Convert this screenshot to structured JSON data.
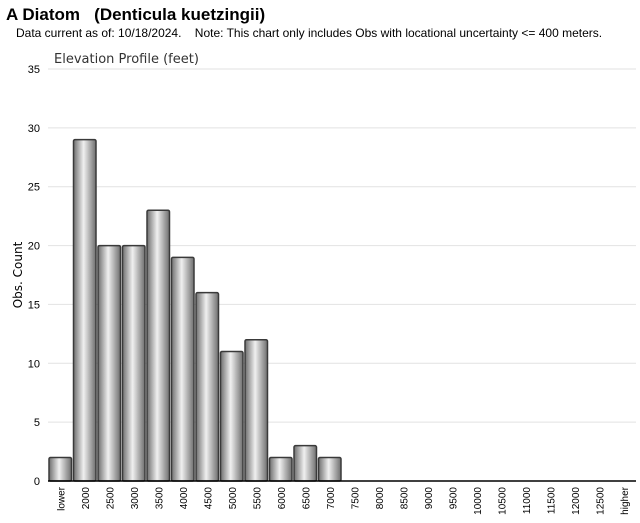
{
  "header": {
    "title": "A Diatom   (Denticula kuetzingii)",
    "note": "Data current as of: 10/18/2024.    Note: This chart only includes Obs with locational uncertainty <= 400 meters."
  },
  "chart_data": {
    "type": "bar",
    "title": "Elevation Profile (feet)",
    "xlabel": "",
    "ylabel": "Obs. Count",
    "ylim": [
      0,
      35
    ],
    "yticks": [
      0,
      5,
      10,
      15,
      20,
      25,
      30,
      35
    ],
    "grid": true,
    "categories": [
      "lower",
      "2000",
      "2500",
      "3000",
      "3500",
      "4000",
      "4500",
      "5000",
      "5500",
      "6000",
      "6500",
      "7000",
      "7500",
      "8000",
      "8500",
      "9000",
      "9500",
      "10000",
      "10500",
      "11000",
      "11500",
      "12000",
      "12500",
      "higher"
    ],
    "values": [
      2,
      29,
      20,
      20,
      23,
      19,
      16,
      11,
      12,
      2,
      3,
      2,
      0,
      0,
      0,
      0,
      0,
      0,
      0,
      0,
      0,
      0,
      0,
      0
    ],
    "colors": {
      "bar_dark": "#6e6e6e",
      "bar_light": "#f0f0f0",
      "bar_stroke": "#3a3a3a",
      "grid": "#e2e2e2",
      "axis": "#000000"
    }
  }
}
